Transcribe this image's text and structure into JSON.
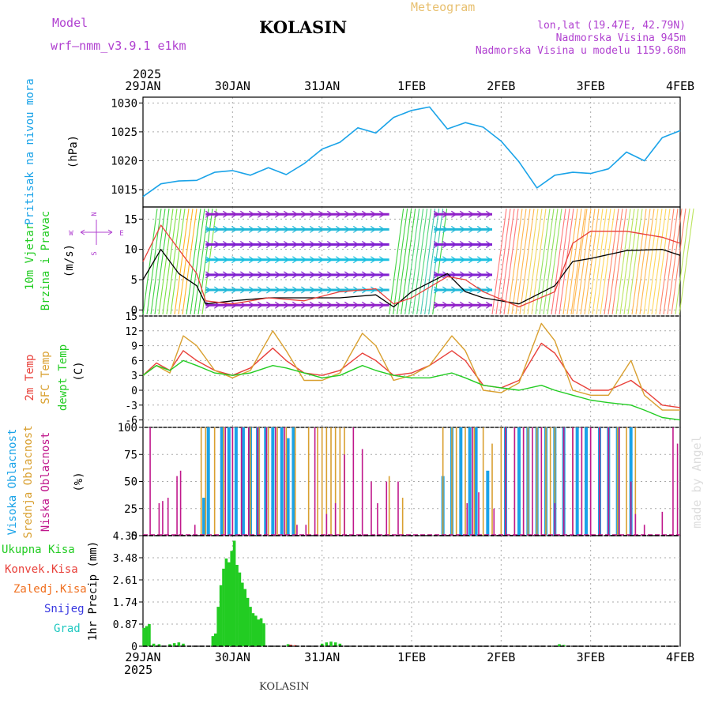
{
  "header": {
    "model_label": "Model",
    "model_name": "wrf–nmm_v3.9.1  e1km",
    "title": "KOLASIN",
    "meteogram_label": "Meteogram",
    "lonlat": "lon,lat (19.47E, 42.79N)",
    "elevation": "Nadmorska Visina 945m",
    "model_elevation": "Nadmorska Visina u modelu 1159.68m",
    "footer_station": "KOLASIN",
    "watermark": "made by Angel"
  },
  "colors": {
    "pressure": "#1aa3e8",
    "temp2m": "#e8403a",
    "sfc_temp": "#d9a030",
    "dewpt": "#22cc22",
    "high_cloud": "#1aa3e8",
    "mid_cloud": "#d9a030",
    "low_cloud": "#c0188c",
    "total_precip": "#22cc22",
    "conv_precip": "#e8403a",
    "freezing_precip": "#f07020",
    "snow": "#3838e0",
    "hail": "#20c8c0",
    "purple_text": "#b040d0",
    "gold_text": "#e8c070"
  },
  "chart_data": [
    {
      "type": "line",
      "panel": "pressure",
      "ylabel_left": "Pritisak na nivou mora",
      "ylabel_unit": "(hPa)",
      "ylim": [
        1012,
        1031
      ],
      "yticks": [
        "1015",
        "1020",
        "1025",
        "1030"
      ],
      "x_top_year": "2025",
      "x_tick_labels": [
        "29JAN",
        "30JAN",
        "31JAN",
        "1FEB",
        "2FEB",
        "3FEB",
        "4FEB"
      ],
      "x_bottom_year": "2025",
      "x_range_days": [
        0,
        6
      ],
      "x_days": [
        0,
        0.2,
        0.4,
        0.6,
        0.8,
        1.0,
        1.2,
        1.4,
        1.6,
        1.8,
        2.0,
        2.2,
        2.4,
        2.6,
        2.8,
        3.0,
        3.2,
        3.4,
        3.6,
        3.8,
        4.0,
        4.2,
        4.4,
        4.6,
        4.8,
        5.0,
        5.2,
        5.4,
        5.6,
        5.8,
        6.0
      ],
      "values": [
        1013.8,
        1016.0,
        1016.5,
        1016.6,
        1018.0,
        1018.3,
        1017.5,
        1018.8,
        1017.6,
        1019.5,
        1022.0,
        1023.2,
        1025.7,
        1024.8,
        1027.5,
        1028.7,
        1029.3,
        1025.5,
        1026.6,
        1025.8,
        1023.4,
        1019.8,
        1015.3,
        1017.5,
        1018.0,
        1017.8,
        1018.6,
        1021.5,
        1020.0,
        1024.0,
        1025.2
      ]
    },
    {
      "type": "line",
      "panel": "wind",
      "ylabel_left": "10m Vjetar",
      "ylabel_left2": "Brzina i Pravac",
      "ylabel_unit": "(m/s)",
      "compass": {
        "n": "N",
        "s": "S",
        "w": "W",
        "e": "E"
      },
      "ylim": [
        -1,
        17
      ],
      "yticks": [
        "0",
        "5",
        "10",
        "15"
      ],
      "series": [
        {
          "name": "speed_black",
          "x": [
            0,
            0.2,
            0.4,
            0.6,
            0.7,
            1.0,
            1.4,
            1.8,
            2.2,
            2.6,
            2.8,
            3.0,
            3.4,
            3.6,
            3.8,
            4.2,
            4.6,
            4.8,
            5.0,
            5.4,
            5.8,
            6.0
          ],
          "values": [
            5,
            10,
            6,
            4,
            1,
            1.5,
            2,
            2,
            2,
            2.5,
            0.5,
            3,
            6,
            3,
            2,
            1,
            4,
            8,
            8.5,
            9.8,
            10,
            9
          ]
        },
        {
          "name": "gust_red",
          "x": [
            0,
            0.2,
            0.4,
            0.6,
            0.7,
            1.0,
            1.4,
            1.8,
            2.2,
            2.6,
            2.8,
            3.0,
            3.4,
            3.6,
            3.8,
            4.2,
            4.6,
            4.8,
            5.0,
            5.4,
            5.8,
            6.0
          ],
          "values": [
            8,
            14,
            10,
            6,
            1.5,
            1,
            2,
            1.5,
            3,
            3.5,
            1,
            2,
            5.5,
            5,
            3,
            0.5,
            3,
            11,
            13,
            13,
            12,
            11
          ]
        }
      ]
    },
    {
      "type": "line",
      "panel": "temperature",
      "ylabel_left": "2m Temp",
      "ylabel_left2": "SFC Temp",
      "ylabel_left3": "dewpt Temp",
      "ylabel_unit": "(C)",
      "ylim": [
        -7.5,
        15
      ],
      "yticks": [
        "15",
        "12",
        "9",
        "6",
        "3",
        "0",
        "-3",
        "-6"
      ],
      "x": [
        0,
        0.15,
        0.3,
        0.45,
        0.6,
        0.8,
        1.0,
        1.2,
        1.45,
        1.6,
        1.8,
        2.0,
        2.2,
        2.45,
        2.6,
        2.8,
        3.0,
        3.2,
        3.45,
        3.6,
        3.8,
        4.0,
        4.2,
        4.45,
        4.6,
        4.8,
        5.0,
        5.2,
        5.45,
        5.6,
        5.8,
        6.0
      ],
      "series": [
        {
          "name": "2m Temp",
          "values": [
            3,
            5.5,
            4,
            8,
            6,
            4,
            3,
            4.5,
            8.5,
            6,
            3.5,
            3,
            4,
            7.5,
            6,
            3,
            3.5,
            5,
            8,
            6,
            1,
            0.5,
            2,
            9.5,
            7.5,
            2,
            0,
            0,
            2,
            0,
            -3,
            -3.5
          ]
        },
        {
          "name": "SFC Temp",
          "values": [
            3,
            5,
            3.5,
            11,
            9,
            4,
            2.5,
            4,
            12,
            8,
            2,
            2,
            3.5,
            11.5,
            9,
            2,
            3,
            5,
            11,
            8,
            0,
            -0.5,
            1.5,
            13.5,
            10,
            0,
            -1,
            -1,
            6,
            -1,
            -4,
            -4
          ]
        },
        {
          "name": "dewpt Temp",
          "values": [
            3,
            5,
            4,
            6,
            5,
            3.5,
            3,
            3.5,
            5,
            4.5,
            3.5,
            2.5,
            3,
            5,
            4,
            3,
            2.5,
            2.5,
            3.5,
            2.5,
            1,
            0.5,
            0,
            1,
            0,
            -1,
            -2,
            -2.5,
            -3,
            -4,
            -5.5,
            -6
          ]
        }
      ]
    },
    {
      "type": "bar",
      "panel": "clouds",
      "ylabel_left": "Visoka Oblacnost",
      "ylabel_left2": "Srednja Oblacnost",
      "ylabel_left3": "Niska Oblacnost",
      "ylabel_unit": "(%)",
      "ylim": [
        0,
        100
      ],
      "yticks": [
        "0",
        "25",
        "50",
        "75",
        "100"
      ],
      "series": [
        {
          "name": "Visoka Oblacnost",
          "x": [
            0.68,
            0.73,
            0.88,
            0.96,
            1.04,
            1.12,
            1.2,
            1.28,
            1.37,
            1.45,
            1.55,
            1.62,
            1.68,
            3.35,
            3.45,
            3.55,
            3.65,
            3.72,
            3.85,
            4.05,
            4.2,
            4.3,
            4.4,
            4.5,
            4.6,
            4.7,
            4.85,
            4.95,
            5.1,
            5.2,
            5.3,
            5.45
          ],
          "values": [
            35,
            100,
            100,
            100,
            100,
            100,
            100,
            100,
            100,
            100,
            100,
            90,
            100,
            55,
            100,
            100,
            100,
            100,
            60,
            100,
            100,
            100,
            100,
            100,
            100,
            100,
            100,
            100,
            100,
            100,
            100,
            100
          ]
        },
        {
          "name": "Srednja Oblacnost",
          "x": [
            0.65,
            0.7,
            0.8,
            0.9,
            1.0,
            1.1,
            1.2,
            1.3,
            1.4,
            1.5,
            1.6,
            1.7,
            1.85,
            1.95,
            2.0,
            2.05,
            2.1,
            2.15,
            2.2,
            2.25,
            2.75,
            2.9,
            3.35,
            3.45,
            3.5,
            3.6,
            3.7,
            3.8,
            3.9,
            4.0,
            4.05,
            4.15,
            4.25,
            4.3,
            4.4,
            4.5,
            4.55,
            4.6,
            4.7,
            4.8,
            4.9,
            5.0,
            5.1,
            5.2,
            5.3,
            5.4,
            5.5
          ],
          "values": [
            100,
            100,
            100,
            100,
            100,
            100,
            100,
            100,
            100,
            100,
            100,
            100,
            100,
            100,
            100,
            100,
            100,
            100,
            100,
            100,
            55,
            35,
            100,
            100,
            100,
            100,
            100,
            100,
            85,
            100,
            100,
            100,
            100,
            100,
            100,
            100,
            100,
            100,
            100,
            100,
            100,
            100,
            100,
            100,
            100,
            100,
            100
          ]
        },
        {
          "name": "Niska Oblacnost",
          "x": [
            0.08,
            0.18,
            0.22,
            0.28,
            0.38,
            0.42,
            0.58,
            0.92,
            1.0,
            1.1,
            1.18,
            1.28,
            1.38,
            1.48,
            1.58,
            1.72,
            1.82,
            1.92,
            2.05,
            2.15,
            2.25,
            2.35,
            2.45,
            2.55,
            2.62,
            2.72,
            2.85,
            3.62,
            3.68,
            3.75,
            3.92,
            4.05,
            4.15,
            4.25,
            4.35,
            4.45,
            4.6,
            4.7,
            4.8,
            4.9,
            5.0,
            5.1,
            5.2,
            5.32,
            5.45,
            5.5,
            5.6,
            5.8,
            5.92,
            5.97
          ],
          "values": [
            100,
            30,
            32,
            35,
            55,
            60,
            10,
            100,
            100,
            100,
            100,
            100,
            100,
            100,
            100,
            10,
            10,
            100,
            20,
            30,
            75,
            100,
            80,
            50,
            30,
            50,
            50,
            30,
            100,
            40,
            25,
            100,
            100,
            100,
            100,
            100,
            30,
            100,
            100,
            100,
            100,
            100,
            100,
            100,
            50,
            20,
            10,
            22,
            100,
            85
          ]
        }
      ]
    },
    {
      "type": "bar",
      "panel": "precipitation",
      "legend": [
        "Ukupna  Kisa",
        "Konvek.Kisa",
        "Zaledj.Kisa",
        "Snijeg",
        "Grad"
      ],
      "ylabel_unit": "1hr Precip (mm)",
      "ylim": [
        0,
        4.35
      ],
      "yticks": [
        "0",
        "0.87",
        "1.74",
        "2.61",
        "3.48",
        "4.35"
      ],
      "x_tick_labels": [
        "29JAN",
        "30JAN",
        "31JAN",
        "1FEB",
        "2FEB",
        "3FEB",
        "4FEB"
      ],
      "x_bottom_year": "2025",
      "series": [
        {
          "name": "Ukupna  Kisa",
          "x": [
            0.01,
            0.04,
            0.07,
            0.12,
            0.18,
            0.3,
            0.35,
            0.4,
            0.45,
            0.78,
            0.81,
            0.84,
            0.87,
            0.9,
            0.93,
            0.96,
            0.99,
            1.02,
            1.05,
            1.08,
            1.11,
            1.14,
            1.17,
            1.2,
            1.23,
            1.26,
            1.29,
            1.32,
            1.35,
            1.62,
            1.65,
            2.0,
            2.05,
            2.1,
            2.15,
            2.2,
            4.65,
            4.7
          ],
          "values": [
            0.72,
            0.79,
            0.87,
            0.1,
            0.08,
            0.08,
            0.12,
            0.15,
            0.1,
            0.4,
            0.5,
            1.55,
            2.4,
            3.05,
            3.45,
            3.3,
            3.75,
            4.15,
            3.2,
            2.9,
            2.5,
            2.25,
            1.9,
            1.55,
            1.3,
            1.2,
            1.05,
            1.1,
            0.9,
            0.08,
            0.05,
            0.1,
            0.15,
            0.18,
            0.15,
            0.1,
            0.08,
            0.05
          ]
        },
        {
          "name": "Konvek.Kisa",
          "x": [
            1.65,
            1.7
          ],
          "values": [
            0.06,
            0.04
          ]
        }
      ]
    }
  ]
}
